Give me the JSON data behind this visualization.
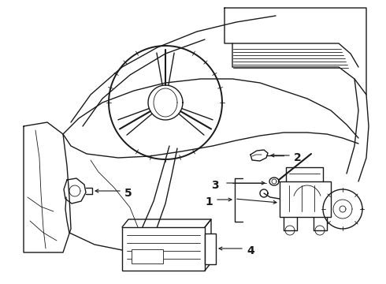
{
  "bg_color": "#ffffff",
  "line_color": "#1a1a1a",
  "lw": 1.0,
  "tlw": 0.6,
  "label_fontsize": 10,
  "figsize": [
    4.9,
    3.6
  ],
  "dpi": 100
}
